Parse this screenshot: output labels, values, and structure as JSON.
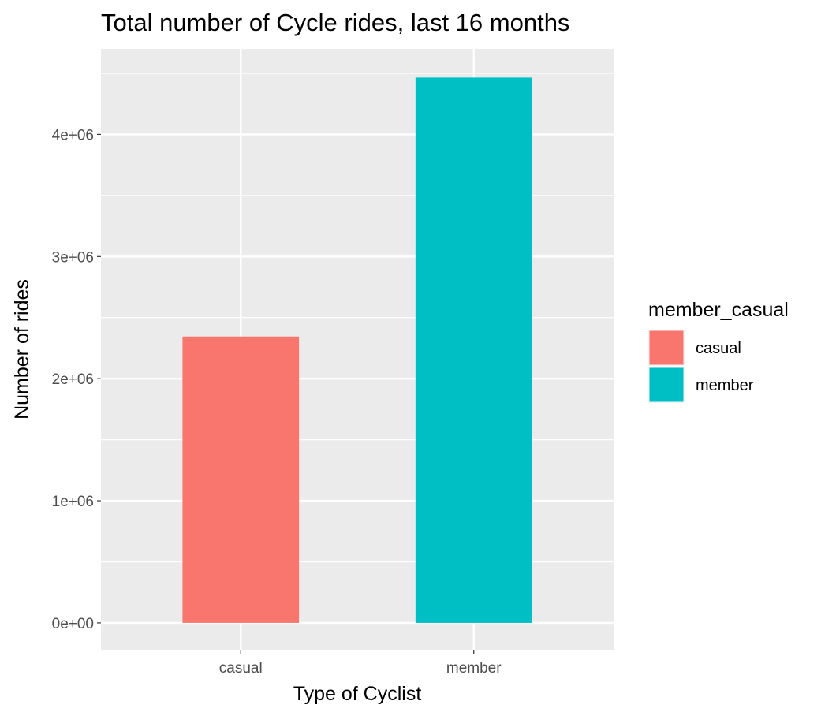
{
  "chart_data": {
    "type": "bar",
    "title": "Total number of Cycle rides, last 16 months",
    "xlabel": "Type of Cyclist",
    "ylabel": "Number of rides",
    "categories": [
      "casual",
      "member"
    ],
    "values": [
      2345000,
      4465000
    ],
    "colors": [
      "#F8766D",
      "#00BFC4"
    ],
    "ylim": [
      -220000,
      4700000
    ],
    "yticks": [
      0,
      1000000,
      2000000,
      3000000,
      4000000
    ],
    "ytick_labels": [
      "0e+00",
      "1e+06",
      "2e+06",
      "3e+06",
      "4e+06"
    ],
    "grid": true,
    "panel_background": "#EBEBEB",
    "legend": {
      "title": "member_casual",
      "placement": "right",
      "entries": [
        {
          "label": "casual",
          "color": "#F8766D"
        },
        {
          "label": "member",
          "color": "#00BFC4"
        }
      ]
    }
  }
}
